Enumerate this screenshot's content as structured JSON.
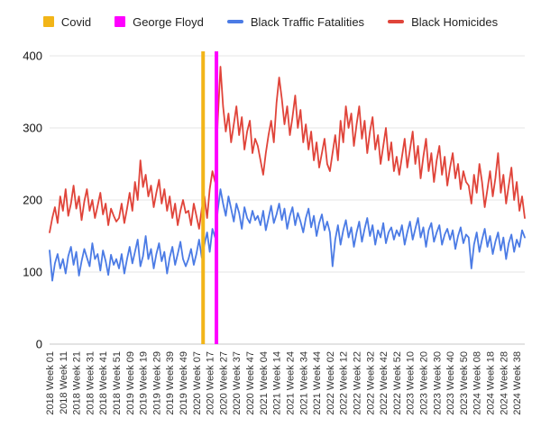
{
  "legend": {
    "items": [
      {
        "label": "Covid",
        "color": "#F2B518",
        "marker": "square"
      },
      {
        "label": "George Floyd",
        "color": "#FF00FF",
        "marker": "square"
      },
      {
        "label": "Black Traffic Fatalities",
        "color": "#4B7BE5",
        "marker": "line"
      },
      {
        "label": "Black Homicides",
        "color": "#E0443A",
        "marker": "line"
      }
    ]
  },
  "chart_data": {
    "type": "line",
    "title": "",
    "xlabel": "",
    "ylabel": "",
    "grid": "horizontal",
    "legend_position": "top",
    "y_range": [
      0,
      400
    ],
    "y_ticks": [
      0,
      100,
      200,
      300,
      400
    ],
    "total_weeks": 357,
    "sample_step_weeks": 2,
    "x_tick_step_weeks": 10,
    "x_tick_labels": [
      "2018 Week 01",
      "2018 Week 11",
      "2018 Week 21",
      "2018 Week 31",
      "2018 Week 41",
      "2018 Week 51",
      "2019 Week 09",
      "2019 Week 19",
      "2019 Week 29",
      "2019 Week 39",
      "2019 Week 49",
      "2020 Week 07",
      "2020 Week 17",
      "2020 Week 27",
      "2020 Week 37",
      "2020 Week 47",
      "2021 Week 04",
      "2021 Week 14",
      "2021 Week 24",
      "2021 Week 34",
      "2021 Week 44",
      "2022 Week 02",
      "2022 Week 12",
      "2022 Week 22",
      "2022 Week 32",
      "2022 Week 42",
      "2022 Week 52",
      "2023 Week 10",
      "2023 Week 20",
      "2023 Week 30",
      "2023 Week 40",
      "2023 Week 50",
      "2024 Week 08",
      "2024 Week 18",
      "2024 Week 28",
      "2024 Week 38"
    ],
    "vertical_lines": [
      {
        "label": "Covid",
        "week_index": 115,
        "color": "#F2B518"
      },
      {
        "label": "George Floyd",
        "week_index": 125,
        "color": "#FF00FF"
      }
    ],
    "series": [
      {
        "name": "Black Traffic Fatalities",
        "color": "#4B7BE5",
        "values": [
          130,
          88,
          112,
          125,
          105,
          118,
          98,
          122,
          135,
          110,
          128,
          95,
          115,
          132,
          120,
          108,
          140,
          118,
          125,
          102,
          130,
          115,
          96,
          124,
          110,
          118,
          105,
          125,
          98,
          118,
          135,
          112,
          128,
          145,
          108,
          122,
          150,
          118,
          132,
          105,
          125,
          140,
          115,
          128,
          98,
          120,
          135,
          110,
          125,
          142,
          118,
          108,
          118,
          132,
          110,
          125,
          145,
          120,
          138,
          155,
          128,
          160,
          148,
          185,
          215,
          195,
          178,
          205,
          188,
          170,
          195,
          182,
          160,
          190,
          175,
          168,
          185,
          172,
          178,
          165,
          185,
          158,
          175,
          192,
          168,
          180,
          195,
          172,
          188,
          160,
          178,
          190,
          165,
          182,
          170,
          155,
          175,
          188,
          162,
          178,
          150,
          168,
          180,
          158,
          170,
          155,
          108,
          145,
          165,
          138,
          158,
          172,
          148,
          162,
          135,
          155,
          170,
          142,
          160,
          175,
          150,
          165,
          138,
          158,
          148,
          168,
          140,
          155,
          162,
          145,
          158,
          150,
          165,
          138,
          155,
          170,
          145,
          160,
          175,
          148,
          162,
          135,
          158,
          168,
          142,
          155,
          165,
          138,
          152,
          160,
          145,
          158,
          132,
          150,
          162,
          140,
          152,
          148,
          105,
          138,
          155,
          128,
          145,
          160,
          135,
          150,
          125,
          142,
          155,
          130,
          148,
          118,
          140,
          152,
          128,
          145,
          135,
          158,
          148
        ]
      },
      {
        "name": "Black Homicides",
        "color": "#E0443A",
        "values": [
          155,
          175,
          190,
          168,
          205,
          185,
          215,
          178,
          195,
          220,
          188,
          205,
          172,
          198,
          215,
          185,
          200,
          175,
          192,
          210,
          180,
          195,
          165,
          188,
          178,
          170,
          175,
          195,
          168,
          188,
          210,
          185,
          225,
          200,
          255,
          218,
          235,
          205,
          220,
          190,
          210,
          228,
          195,
          215,
          185,
          205,
          175,
          195,
          165,
          185,
          200,
          182,
          185,
          165,
          195,
          178,
          160,
          188,
          205,
          175,
          215,
          240,
          225,
          310,
          385,
          330,
          295,
          320,
          280,
          305,
          330,
          290,
          315,
          270,
          295,
          310,
          265,
          285,
          275,
          255,
          235,
          265,
          290,
          310,
          280,
          335,
          370,
          340,
          305,
          330,
          290,
          315,
          345,
          300,
          325,
          280,
          305,
          270,
          295,
          255,
          280,
          245,
          265,
          285,
          250,
          240,
          265,
          290,
          255,
          310,
          280,
          330,
          300,
          320,
          275,
          305,
          330,
          285,
          310,
          265,
          295,
          315,
          270,
          290,
          250,
          275,
          300,
          255,
          280,
          240,
          260,
          235,
          260,
          285,
          245,
          270,
          295,
          250,
          275,
          230,
          260,
          285,
          240,
          265,
          225,
          255,
          275,
          235,
          260,
          220,
          245,
          265,
          230,
          250,
          215,
          240,
          225,
          220,
          195,
          235,
          210,
          250,
          225,
          190,
          215,
          240,
          205,
          230,
          265,
          210,
          235,
          195,
          220,
          245,
          200,
          225,
          185,
          205,
          175
        ]
      }
    ]
  }
}
